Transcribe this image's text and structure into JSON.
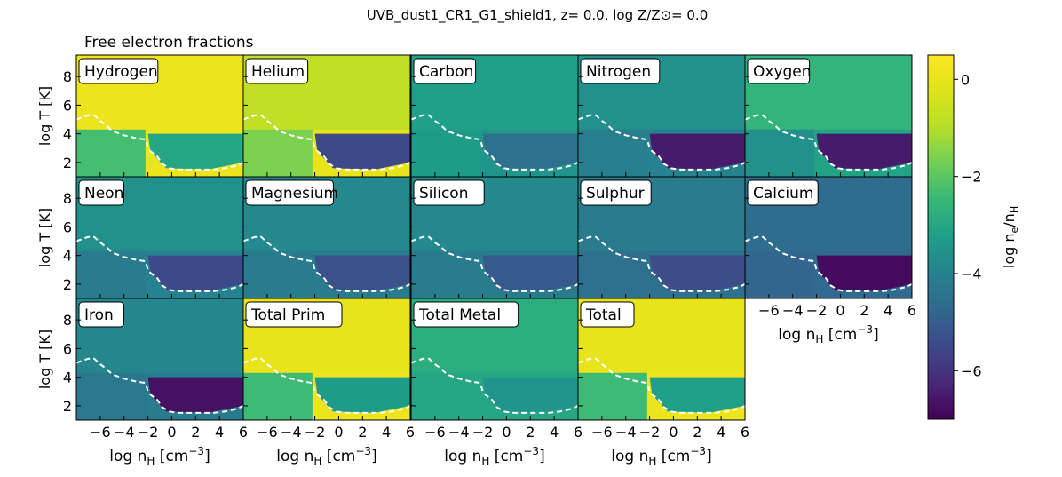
{
  "title": "UVB_dust1_CR1_G1_shield1, z= 0.0, log Z/Z⊙= 0.0",
  "subtitle": "Free electron fractions",
  "chart_data": {
    "type": "heatmap",
    "title": "UVB_dust1_CR1_G1_shield1, z= 0.0, log Z/Z⊙= 0.0",
    "subtitle": "Free electron fractions",
    "xlabel": "log n_H [cm^-3]",
    "ylabel": "log T [K]",
    "xlim": [
      -8,
      6
    ],
    "ylim": [
      1,
      9.5
    ],
    "x_ticks": [
      -6,
      -4,
      -2,
      0,
      2,
      4,
      6
    ],
    "x_tick_labels": [
      "−6",
      "−4",
      "−2",
      "0",
      "2",
      "4",
      "6"
    ],
    "y_ticks": [
      2,
      4,
      6,
      8
    ],
    "y_tick_labels": [
      "2",
      "4",
      "6",
      "8"
    ],
    "colorbar": {
      "label": "log n_e/n_H",
      "range": [
        -7,
        0.5
      ],
      "ticks": [
        0,
        -2,
        -4,
        -6
      ],
      "tick_labels": [
        "0",
        "−2",
        "−4",
        "−6"
      ],
      "colormap": "viridis"
    },
    "boundary_curve": {
      "style": "dashed",
      "color": "#ffffff",
      "x": [
        -8,
        -7,
        -6.5,
        -6,
        -5.5,
        -5,
        -4,
        -3,
        -2.2,
        -2,
        -1.8,
        -1.2,
        -0.8,
        -0.2,
        0.5,
        1.5,
        2.5,
        3.5,
        4.5,
        5.5,
        6
      ],
      "y": [
        5,
        5.3,
        5.3,
        4.9,
        4.6,
        4.2,
        3.9,
        3.7,
        3.6,
        3.0,
        2.8,
        2.4,
        1.9,
        1.6,
        1.5,
        1.5,
        1.5,
        1.5,
        1.6,
        1.8,
        2.0
      ]
    },
    "panels": [
      {
        "name": "Hydrogen",
        "hot": 0.1,
        "warm": 0.1,
        "core": -3.0,
        "low": -2.3,
        "fill": 0.2
      },
      {
        "name": "Helium",
        "hot": -0.8,
        "warm": 0.0,
        "core": -5.5,
        "low": -1.6,
        "fill": 0.2
      },
      {
        "name": "Carbon",
        "hot": -3.2,
        "warm": -3.5,
        "core": -4.5,
        "low": -3.3,
        "fill": 0.2
      },
      {
        "name": "Nitrogen",
        "hot": -3.6,
        "warm": -4.0,
        "core": -6.5,
        "low": -4.1,
        "fill": 0.2
      },
      {
        "name": "Oxygen",
        "hot": -2.6,
        "warm": -3.1,
        "core": -6.5,
        "low": -3.6,
        "fill": 0.15
      },
      {
        "name": "Neon",
        "hot": -3.6,
        "warm": -4.0,
        "core": -5.5,
        "low": -4.2,
        "fill": 0.15
      },
      {
        "name": "Magnesium",
        "hot": -3.8,
        "warm": -4.2,
        "core": -5.3,
        "low": -4.2,
        "fill": 0.15
      },
      {
        "name": "Silicon",
        "hot": -3.8,
        "warm": -4.2,
        "core": -5.1,
        "low": -4.2,
        "fill": 0.15
      },
      {
        "name": "Sulphur",
        "hot": -4.2,
        "warm": -4.5,
        "core": -5.4,
        "low": -4.5,
        "fill": 0.15
      },
      {
        "name": "Calcium",
        "hot": -4.6,
        "warm": -4.7,
        "core": -6.8,
        "low": -4.8,
        "fill": 0.15
      },
      {
        "name": "Iron",
        "hot": -3.9,
        "warm": -4.2,
        "core": -6.7,
        "low": -4.3,
        "fill": 0.15
      },
      {
        "name": "Total Prim",
        "hot": 0.0,
        "warm": 0.1,
        "core": -3.3,
        "low": -2.4,
        "fill": 0.2
      },
      {
        "name": "Total Metal",
        "hot": -2.8,
        "warm": -3.0,
        "core": -3.5,
        "low": -3.0,
        "fill": 0.15
      },
      {
        "name": "Total",
        "hot": 0.0,
        "warm": 0.1,
        "core": -3.2,
        "low": -2.4,
        "fill": 0.2
      }
    ]
  }
}
